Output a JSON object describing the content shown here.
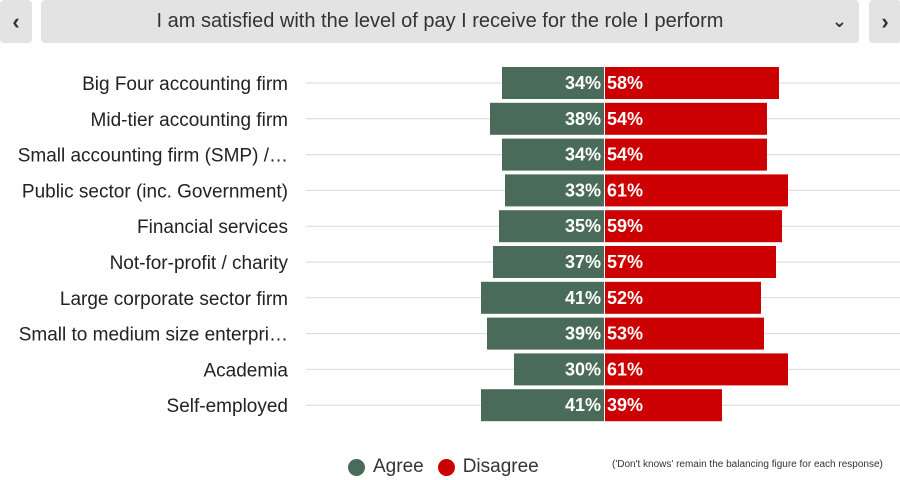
{
  "nav": {
    "prev_icon": "chevron-left-icon",
    "prev_glyph": "‹",
    "next_icon": "chevron-right-icon",
    "next_glyph": "›"
  },
  "question_selector": {
    "value": "I am satisfied with the level of pay I receive for the role I perform",
    "caret_icon": "chevron-down-icon",
    "caret_glyph": "⌄"
  },
  "chart_data": {
    "type": "bar",
    "orientation": "horizontal-diverging",
    "categories": [
      "Big Four accounting firm",
      "Mid-tier accounting firm",
      "Small accounting firm (SMP) /…",
      "Public sector (inc. Government)",
      "Financial services",
      "Not-for-profit / charity",
      "Large corporate sector firm",
      "Small to medium size enterpri…",
      "Academia",
      "Self-employed"
    ],
    "series": [
      {
        "name": "Agree",
        "color": "#4a6b5a",
        "values": [
          34,
          38,
          34,
          33,
          35,
          37,
          41,
          39,
          30,
          41
        ]
      },
      {
        "name": "Disagree",
        "color": "#cc0000",
        "values": [
          58,
          54,
          54,
          61,
          59,
          57,
          52,
          53,
          61,
          39
        ]
      }
    ],
    "value_suffix": "%",
    "xlim": [
      -41,
      61
    ],
    "grid": true,
    "legend_position": "bottom"
  },
  "legend": {
    "agree": "Agree",
    "disagree": "Disagree"
  },
  "footnote": "('Don't knows' remain the balancing figure for each response)"
}
